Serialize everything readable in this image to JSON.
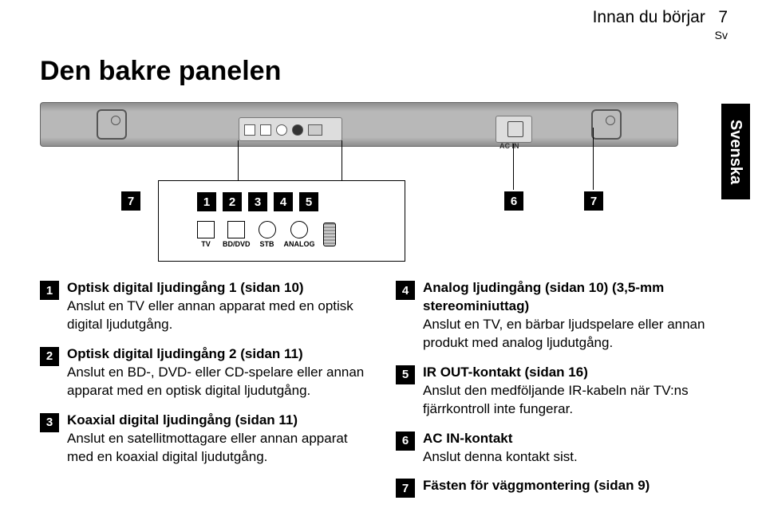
{
  "header": {
    "section": "Innan du börjar",
    "page": "7",
    "lang": "Sv"
  },
  "title": "Den bakre panelen",
  "sideTab": "Svenska",
  "diagram": {
    "acin_label": "AC IN",
    "zoom_numbers": [
      "1",
      "2",
      "3",
      "4",
      "5"
    ],
    "zoom_ports": [
      {
        "label": "TV",
        "shape": "sq"
      },
      {
        "label": "BD/DVD",
        "shape": "sq"
      },
      {
        "label": "STB",
        "shape": "round"
      },
      {
        "label": "ANALOG",
        "shape": "round"
      },
      {
        "label": "",
        "shape": "jack"
      }
    ],
    "callout_6": "6",
    "callout_7a": "7",
    "callout_7b": "7"
  },
  "leftItems": [
    {
      "n": "1",
      "title": "Optisk digital ljudingång 1 (sidan 10)",
      "body": "Anslut en TV eller annan apparat med en optisk digital ljudutgång."
    },
    {
      "n": "2",
      "title": "Optisk digital ljudingång 2 (sidan 11)",
      "body": "Anslut en BD-, DVD- eller CD-spelare eller annan apparat med en optisk digital ljudutgång."
    },
    {
      "n": "3",
      "title": "Koaxial digital ljudingång (sidan 11)",
      "body": "Anslut en satellitmottagare eller annan apparat med en koaxial digital ljudutgång."
    }
  ],
  "rightItems": [
    {
      "n": "4",
      "title": "Analog ljudingång (sidan 10) (3,5-mm stereominiuttag)",
      "body": "Anslut en TV, en bärbar ljudspelare eller annan produkt med analog ljudutgång."
    },
    {
      "n": "5",
      "title": "IR OUT-kontakt (sidan 16)",
      "body": "Anslut den medföljande IR-kabeln när TV:ns fjärrkontroll inte fungerar."
    },
    {
      "n": "6",
      "title": "AC IN-kontakt",
      "body": "Anslut denna kontakt sist."
    },
    {
      "n": "7",
      "title": "Fästen för väggmontering (sidan 9)",
      "body": ""
    }
  ]
}
